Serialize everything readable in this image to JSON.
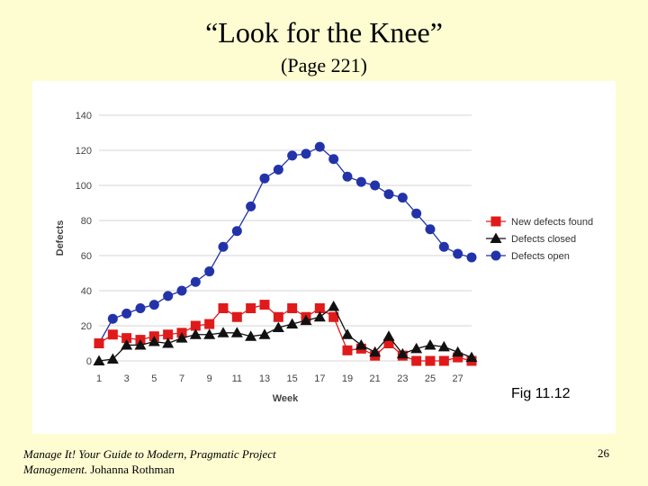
{
  "slide": {
    "title": "“Look for the Knee”",
    "subtitle": "(Page 221)",
    "fig_label": "Fig 11.12",
    "footer_line1": "Manage It! Your Guide to Modern, Pragmatic Project",
    "footer_line2_italic": "Management.",
    "footer_line2_rest": " Johanna Rothman",
    "page_number": "26"
  },
  "chart_data": {
    "type": "line",
    "title": "",
    "xlabel": "Week",
    "ylabel": "Defects",
    "xlim": [
      1,
      28
    ],
    "ylim": [
      0,
      140
    ],
    "x_ticks": [
      1,
      3,
      5,
      7,
      9,
      11,
      13,
      15,
      17,
      19,
      21,
      23,
      25,
      27
    ],
    "y_ticks": [
      0,
      20,
      40,
      60,
      80,
      100,
      120,
      140
    ],
    "grid": true,
    "legend_position": "right",
    "x": [
      1,
      2,
      3,
      4,
      5,
      6,
      7,
      8,
      9,
      10,
      11,
      12,
      13,
      14,
      15,
      16,
      17,
      18,
      19,
      20,
      21,
      22,
      23,
      24,
      25,
      26,
      27,
      28
    ],
    "series": [
      {
        "name": "New defects found",
        "color": "#e01a1a",
        "marker": "square",
        "values": [
          10,
          15,
          13,
          12,
          14,
          15,
          16,
          20,
          21,
          30,
          25,
          30,
          32,
          25,
          30,
          25,
          30,
          25,
          6,
          7,
          3,
          10,
          3,
          0,
          0,
          0,
          2,
          0
        ]
      },
      {
        "name": "Defects closed",
        "color": "#111111",
        "marker": "triangle",
        "values": [
          0,
          1,
          9,
          9,
          11,
          10,
          13,
          15,
          15,
          16,
          16,
          14,
          15,
          19,
          21,
          23,
          25,
          31,
          15,
          9,
          5,
          14,
          4,
          7,
          9,
          8,
          5,
          2
        ]
      },
      {
        "name": "Defects open",
        "color": "#2233aa",
        "marker": "circle",
        "values": [
          10,
          24,
          27,
          30,
          32,
          37,
          40,
          45,
          51,
          65,
          74,
          88,
          104,
          109,
          117,
          118,
          122,
          115,
          105,
          102,
          100,
          95,
          93,
          84,
          75,
          65,
          61,
          59
        ]
      }
    ]
  }
}
